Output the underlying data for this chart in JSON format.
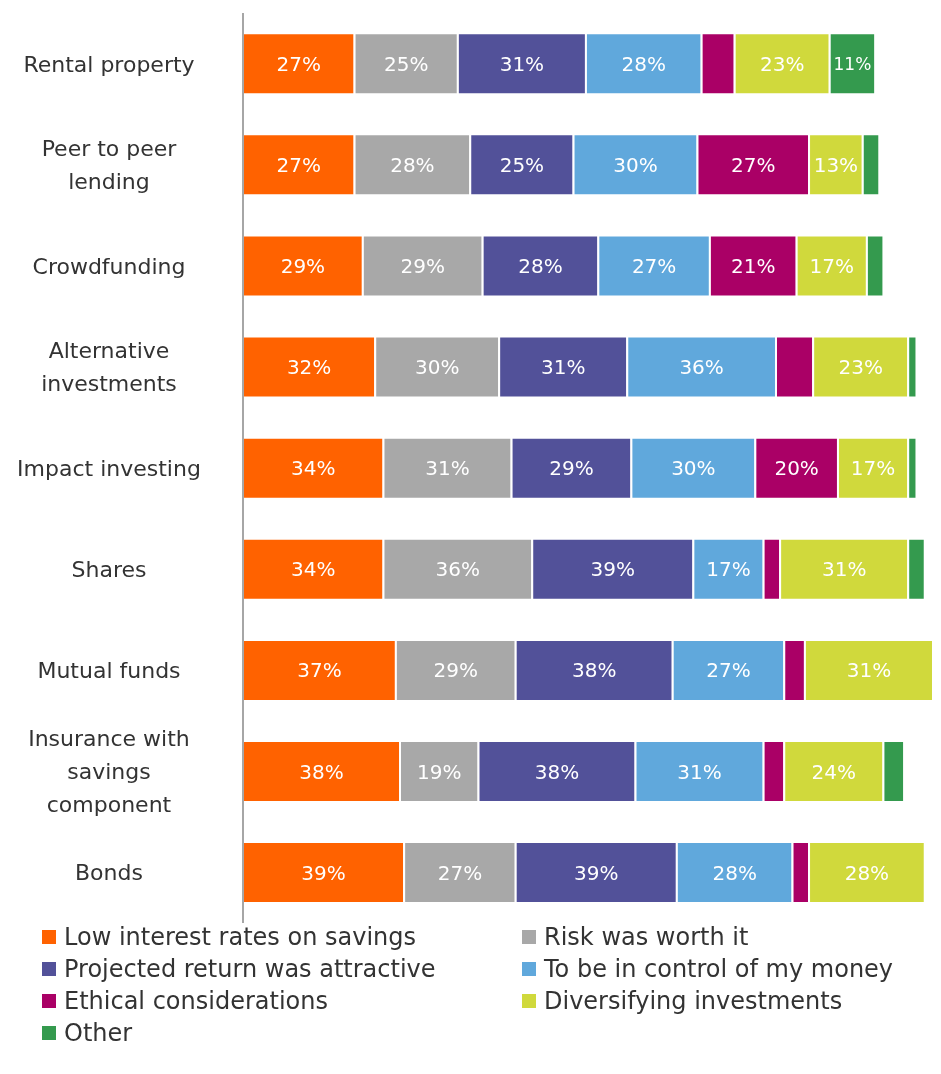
{
  "chart_data": {
    "type": "bar",
    "orientation": "horizontal",
    "stacked": true,
    "legend": "bottom",
    "categories": [
      "Rental property",
      "Peer to peer lending",
      "Crowdfunding",
      "Alternative investments",
      "Impact investing",
      "Shares",
      "Mutual funds",
      "Insurance with savings component",
      "Bonds"
    ],
    "series": [
      {
        "name": "Low interest rates on savings",
        "color": "#ff6200",
        "values": [
          27,
          27,
          29,
          32,
          34,
          34,
          37,
          38,
          39
        ],
        "value_labels": [
          "27%",
          "27%",
          "29%",
          "32%",
          "34%",
          "34%",
          "37%",
          "38%",
          "39%"
        ]
      },
      {
        "name": "Risk was worth it",
        "color": "#a8a8a8",
        "values": [
          25,
          28,
          29,
          30,
          31,
          36,
          29,
          19,
          27
        ],
        "value_labels": [
          "25%",
          "28%",
          "29%",
          "30%",
          "31%",
          "36%",
          "29%",
          "19%",
          "27%"
        ]
      },
      {
        "name": "Projected return was attractive",
        "color": "#525199",
        "values": [
          31,
          25,
          28,
          31,
          29,
          39,
          38,
          38,
          39
        ],
        "value_labels": [
          "31%",
          "25%",
          "28%",
          "31%",
          "29%",
          "39%",
          "38%",
          "38%",
          "39%"
        ]
      },
      {
        "name": "To be in control of my money",
        "color": "#60a8dc",
        "values": [
          28,
          30,
          27,
          36,
          30,
          17,
          27,
          31,
          28
        ],
        "value_labels": [
          "28%",
          "30%",
          "27%",
          "36%",
          "30%",
          "17%",
          "27%",
          "31%",
          "28%"
        ]
      },
      {
        "name": "Ethical considerations",
        "color": "#aa0066",
        "values": [
          8,
          27,
          21,
          9,
          20,
          4,
          5,
          5,
          4
        ],
        "value_labels": [
          null,
          "27%",
          "21%",
          null,
          "20%",
          null,
          null,
          null,
          null
        ]
      },
      {
        "name": "Diversifying investments",
        "color": "#d0d93c",
        "values": [
          23,
          13,
          17,
          23,
          17,
          31,
          31,
          24,
          28
        ],
        "value_labels": [
          "23%",
          "13%",
          "17%",
          "23%",
          "17%",
          "31%",
          "31%",
          "24%",
          "28%"
        ]
      },
      {
        "name": "Other",
        "color": "#349a4e",
        "values": [
          11,
          4,
          4,
          2,
          2,
          4,
          null,
          5,
          null
        ],
        "value_labels": [
          "11%",
          null,
          null,
          null,
          null,
          null,
          null,
          null,
          null
        ]
      }
    ]
  }
}
